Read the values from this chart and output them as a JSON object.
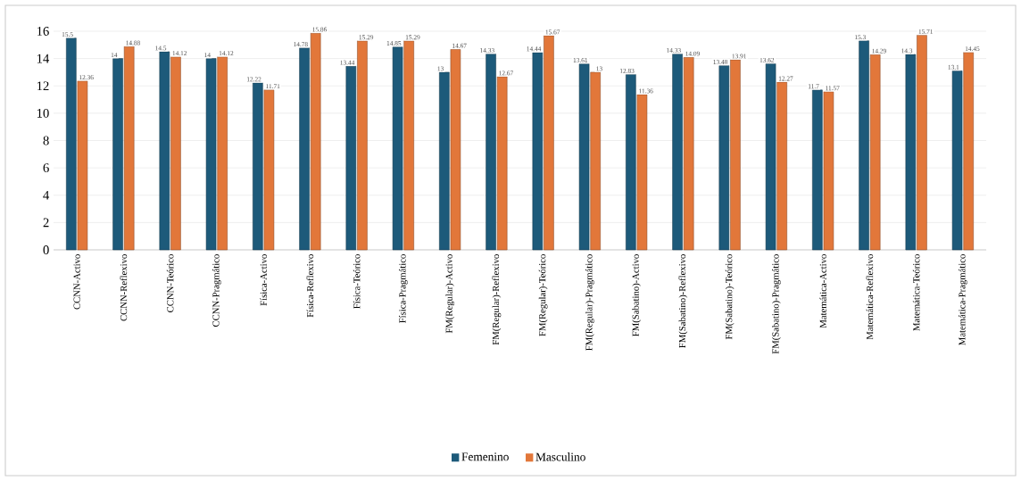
{
  "chart_data": {
    "type": "bar",
    "categories": [
      "CCNN-Activo",
      "CCNN-Reflexivo",
      "CCNN-Teórico",
      "CCNN-Pragmático",
      "Física-Activo",
      "Física-Reflexivo",
      "Física-Teórico",
      "Física-Pragmático",
      "FM(Regular)-Activo",
      "FM(Regular)-Reflexivo",
      "FM(Regular)-Teórico",
      "FM(Regular)-Pragmático",
      "FM(Sabatino)-Activo",
      "FM(Sabatino)-Reflexivo",
      "FM(Sabatino)-Teórico",
      "FM(Sabatino)-Pragmático",
      "Matemática-Activo",
      "Matemática-Reflexivo",
      "Matemática-Teórico",
      "Matemática-Pragmático"
    ],
    "series": [
      {
        "name": "Femenino",
        "color": "#1d5a7a",
        "values": [
          15.5,
          14,
          14.5,
          14,
          12.22,
          14.78,
          13.44,
          14.85,
          13,
          14.33,
          14.44,
          13.61,
          12.83,
          14.33,
          13.48,
          13.62,
          11.7,
          15.3,
          14.3,
          13.1
        ]
      },
      {
        "name": "Masculino",
        "color": "#e2773a",
        "values": [
          12.36,
          14.88,
          14.12,
          14.12,
          11.71,
          15.86,
          15.29,
          15.29,
          14.67,
          12.67,
          15.67,
          13,
          11.36,
          14.09,
          13.91,
          12.27,
          11.57,
          14.29,
          15.71,
          14.45
        ]
      }
    ],
    "ylim": [
      0,
      16
    ],
    "yticks": [
      0,
      2,
      4,
      6,
      8,
      10,
      12,
      14,
      16
    ],
    "grid": "y",
    "legend": "bottom",
    "data_labels": true
  }
}
